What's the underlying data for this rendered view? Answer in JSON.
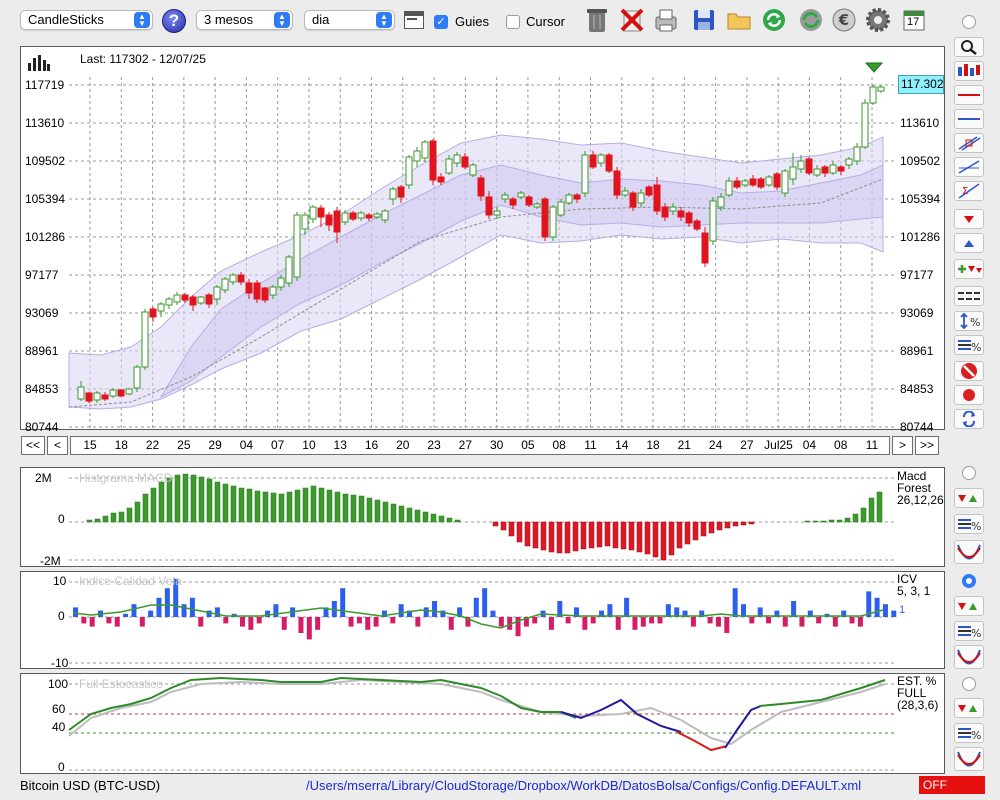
{
  "toolbar": {
    "chart_type": "CandleSticks",
    "period": "3 mesos",
    "interval": "dia",
    "guides_label": "Guies",
    "guides_checked": true,
    "cursor_label": "Cursor",
    "cursor_checked": false,
    "help_label": "?",
    "calendar_day": "17"
  },
  "price_panel": {
    "last_label": "Last: 117302 - 12/07/25",
    "current_price": "117.302,",
    "y_labels": [
      "117719",
      "113610",
      "109502",
      "105394",
      "101286",
      "97177",
      "93069",
      "88961",
      "84853",
      "80744"
    ],
    "x_labels": [
      "15",
      "18",
      "22",
      "25",
      "29",
      "04",
      "07",
      "10",
      "13",
      "16",
      "20",
      "23",
      "27",
      "30",
      "05",
      "08",
      "11",
      "14",
      "18",
      "21",
      "24",
      "27",
      "Jul25",
      "04",
      "08",
      "11"
    ],
    "nav": {
      "first": "<<",
      "prev": "<",
      "next": ">",
      "last": ">>"
    }
  },
  "macd_panel": {
    "title": "Histgrama MACD",
    "side": [
      "Macd",
      "Forest",
      "26,12,26"
    ],
    "y_labels": [
      "2M",
      "0",
      "-2M"
    ]
  },
  "icv_panel": {
    "title": "Indice Calidad Vela",
    "side": [
      "ICV",
      "5, 3, 1"
    ],
    "side_value": "1",
    "y_labels": [
      "10",
      "0",
      "-10"
    ]
  },
  "stoch_panel": {
    "title": "Full Estocastico",
    "side": [
      "EST. %",
      "FULL",
      "(28,3,6)"
    ],
    "y_labels": [
      "100",
      "60",
      "40",
      "0"
    ]
  },
  "status": {
    "symbol": "Bitcoin USD (BTC-USD)",
    "path": "/Users/mserra/Library/CloudStorage/Dropbox/WorkDB/DatosBolsa/Configs/Config.DEFAULT.xml",
    "badge": "OFF"
  },
  "colors": {
    "up": "#3a9a2a",
    "down": "#e0141e",
    "band": "#d9d4f2",
    "accent": "#2f7bf6",
    "macd_neg": "#dd1a2a",
    "icv_pos": "#2c5ef0",
    "icv_neg": "#d61c64"
  },
  "chart_data": {
    "type": "candlestick",
    "x": [
      "15",
      "18",
      "22",
      "25",
      "29",
      "04",
      "07",
      "10",
      "13",
      "16",
      "20",
      "23",
      "27",
      "30",
      "05",
      "08",
      "11",
      "14",
      "18",
      "21",
      "24",
      "27",
      "Jul25",
      "04",
      "08",
      "11"
    ],
    "ylim": [
      80744,
      117719
    ],
    "close_last": 117302,
    "macd_ylim": [
      -2000000,
      2000000
    ],
    "icv_ylim": [
      -10,
      10
    ],
    "stoch_ylim": [
      0,
      100
    ],
    "stoch_levels": [
      60,
      40
    ]
  }
}
